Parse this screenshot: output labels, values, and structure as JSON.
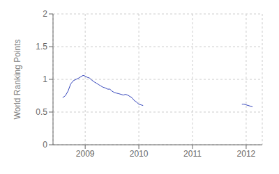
{
  "chart_data": {
    "type": "line",
    "ylabel": "World Ranking Points",
    "color": "#3344bb",
    "grid": true,
    "xlim": [
      2008.4,
      2012.3
    ],
    "xticks": [
      2009,
      2010,
      2011,
      2012
    ],
    "ylim": [
      0,
      2
    ],
    "yticks": [
      0,
      0.5,
      1,
      1.5,
      2
    ],
    "x": [
      2008.58,
      2008.63,
      2008.68,
      2008.73,
      2008.78,
      2008.83,
      2008.88,
      2008.92,
      2008.96,
      2009.0,
      2009.04,
      2009.08,
      2009.12,
      2009.17,
      2009.21,
      2009.25,
      2009.29,
      2009.33,
      2009.37,
      2009.42,
      2009.46,
      2009.5,
      2009.54,
      2009.58,
      2009.63,
      2009.67,
      2009.71,
      2009.75,
      2009.79,
      2009.83,
      2009.87,
      2009.91,
      2009.96,
      2010.0,
      2010.04,
      2010.08,
      null,
      2011.92,
      2011.96,
      2012.0,
      2012.04,
      2012.08,
      2012.12
    ],
    "values": [
      0.72,
      0.75,
      0.82,
      0.93,
      0.98,
      1.0,
      1.02,
      1.04,
      1.06,
      1.05,
      1.03,
      1.02,
      0.99,
      0.96,
      0.94,
      0.92,
      0.9,
      0.88,
      0.87,
      0.85,
      0.85,
      0.82,
      0.8,
      0.79,
      0.78,
      0.77,
      0.76,
      0.77,
      0.76,
      0.74,
      0.72,
      0.68,
      0.65,
      0.62,
      0.61,
      0.6,
      null,
      0.62,
      0.62,
      0.61,
      0.6,
      0.59,
      0.58
    ]
  }
}
